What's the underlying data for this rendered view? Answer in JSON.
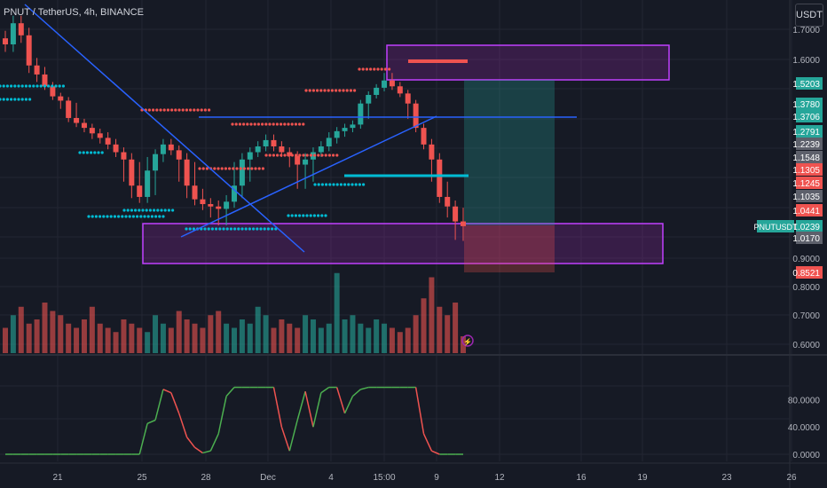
{
  "header": {
    "title": "PNUT / TetherUS, 4h, BINANCE"
  },
  "currency_button": "USDT",
  "colors": {
    "up": "#26a69a",
    "down": "#ef5350",
    "accent": "#e040fb",
    "line": "#2962ff",
    "cyan": "#00bcd4",
    "bg": "#161a25",
    "grid": "#232632"
  },
  "chart_data": [
    {
      "type": "candlestick",
      "title": "PNUT / TetherUS, 4h, BINANCE",
      "y_axis": {
        "labels": [
          "1.7000",
          "1.6000",
          "0.9000",
          "0.8000",
          "0.7000",
          "0.6000"
        ],
        "range": [
          0.55,
          1.75
        ]
      },
      "x_axis": {
        "labels": [
          "21",
          "25",
          "28",
          "Dec",
          "4",
          "15:00",
          "9",
          "12",
          "16",
          "19",
          "23",
          "26"
        ]
      },
      "price_tags": [
        {
          "value": "1.5203",
          "color": "#26a69a"
        },
        {
          "value": "1.3780",
          "color": "#26a69a"
        },
        {
          "value": "1.3706",
          "color": "#26a69a"
        },
        {
          "value": "1.2791",
          "color": "#26a69a"
        },
        {
          "value": "1.2239",
          "color": "#5d606b"
        },
        {
          "value": "1.1548",
          "color": "#5d606b"
        },
        {
          "value": "1.1305",
          "color": "#ef5350"
        },
        {
          "value": "1.1245",
          "color": "#ef5350"
        },
        {
          "value": "1.1035",
          "color": "#5d606b"
        },
        {
          "value": "1.0441",
          "color": "#ef5350"
        },
        {
          "value": "1.0239",
          "color": "#26a69a"
        },
        {
          "value": "1.0170",
          "color": "#5d606b"
        },
        {
          "value": "0.8521",
          "color": "#ef5350"
        }
      ],
      "symbol_tag": "PNUTUSDT",
      "price_series_close": [
        1.65,
        1.72,
        1.68,
        1.58,
        1.55,
        1.5,
        1.43,
        1.4,
        1.36,
        1.33,
        1.3,
        1.27,
        1.25,
        1.22,
        1.18,
        1.15,
        1.12,
        1.1,
        1.13,
        1.17,
        1.22,
        1.19,
        1.15,
        1.12,
        1.09,
        1.07,
        1.06,
        1.05,
        1.08,
        1.12,
        1.15,
        1.18,
        1.21,
        1.24,
        1.21,
        1.18,
        1.16,
        1.14,
        1.15,
        1.18,
        1.21,
        1.25,
        1.28,
        1.3,
        1.32,
        1.38,
        1.44,
        1.49,
        1.53,
        1.5,
        1.45,
        1.38,
        1.3,
        1.22,
        1.15,
        1.1,
        1.06,
        1.03,
        1.024
      ],
      "volume_series": [
        0.3,
        0.45,
        0.55,
        0.35,
        0.4,
        0.6,
        0.5,
        0.45,
        0.35,
        0.3,
        0.4,
        0.55,
        0.35,
        0.3,
        0.25,
        0.4,
        0.35,
        0.3,
        0.25,
        0.45,
        0.35,
        0.3,
        0.5,
        0.4,
        0.35,
        0.3,
        0.45,
        0.5,
        0.35,
        0.3,
        0.4,
        0.35,
        0.55,
        0.45,
        0.3,
        0.4,
        0.35,
        0.3,
        0.45,
        0.4,
        0.3,
        0.35,
        0.95,
        0.4,
        0.45,
        0.35,
        0.3,
        0.4,
        0.35,
        0.3,
        0.25,
        0.3,
        0.45,
        0.65,
        0.9,
        0.55,
        0.45,
        0.6,
        0.2
      ]
    },
    {
      "type": "line",
      "panel": "oscillator",
      "y_axis": {
        "labels": [
          "80.0000",
          "40.0000",
          "0.0000"
        ],
        "range": [
          -5,
          105
        ]
      },
      "values": [
        0,
        0,
        0,
        0,
        0,
        0,
        0,
        0,
        0,
        0,
        0,
        0,
        0,
        0,
        0,
        0,
        0,
        0,
        45,
        50,
        95,
        90,
        60,
        25,
        10,
        2,
        5,
        30,
        85,
        98,
        98,
        98,
        98,
        98,
        98,
        40,
        5,
        50,
        92,
        40,
        90,
        98,
        98,
        60,
        85,
        95,
        98,
        98,
        98,
        98,
        98,
        98,
        98,
        30,
        5,
        0,
        0,
        0,
        0
      ]
    }
  ]
}
